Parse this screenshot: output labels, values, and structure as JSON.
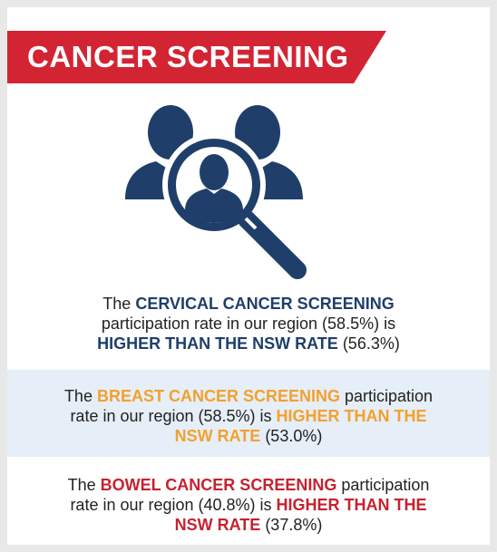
{
  "header": {
    "title": "CANCER SCREENING"
  },
  "icons": {
    "main": "people-search-icon"
  },
  "colors": {
    "banner": "#d32434",
    "navy": "#1f3f6a",
    "gold": "#f2a12e",
    "red": "#c8212f",
    "panel": "#e6eef7"
  },
  "stats": [
    {
      "intro": "The ",
      "program": "CERVICAL CANCER SCREENING",
      "middle_line": "participation rate in our region (58.5%) is",
      "comparison": "HIGHER THAN THE NSW RATE",
      "nsw": " (56.3%)"
    },
    {
      "intro": "The ",
      "program": "BREAST CANCER SCREENING",
      "middle": " participation",
      "middle_line": "rate in our region (58.5%) is ",
      "comparison_a": "HIGHER THAN THE",
      "comparison_b": "NSW RATE",
      "nsw": " (53.0%)"
    },
    {
      "intro": "The ",
      "program": "BOWEL CANCER SCREENING",
      "middle": " participation",
      "middle_line": "rate in our region (40.8%) is ",
      "comparison_a": "HIGHER THAN THE",
      "comparison_b": "NSW RATE",
      "nsw": " (37.8%)"
    }
  ]
}
